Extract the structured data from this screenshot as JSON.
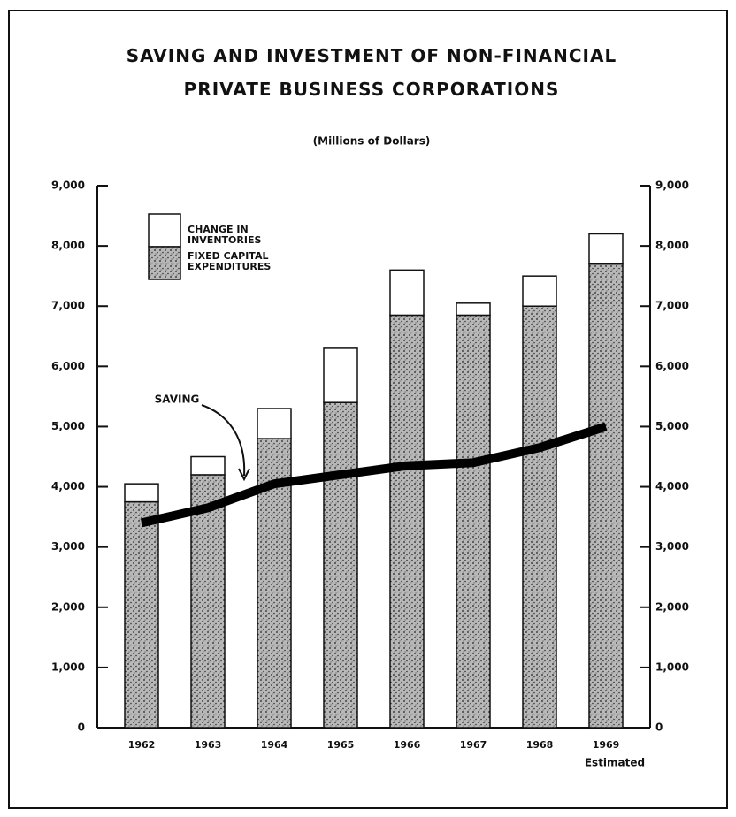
{
  "chart_data": {
    "type": "bar",
    "title": "SAVING AND INVESTMENT OF NON-FINANCIAL PRIVATE BUSINESS CORPORATIONS",
    "subtitle": "(Millions of Dollars)",
    "categories": [
      "1962",
      "1963",
      "1964",
      "1965",
      "1966",
      "1967",
      "1968",
      "1969"
    ],
    "category_note": "Estimated",
    "stacked": true,
    "series": [
      {
        "name": "FIXED CAPITAL EXPENDITURES",
        "color": "#9a9a9a",
        "values": [
          3750,
          4200,
          4800,
          5400,
          6850,
          6850,
          7000,
          7700
        ]
      },
      {
        "name": "CHANGE IN INVENTORIES",
        "color": "#ffffff",
        "values": [
          300,
          300,
          500,
          900,
          750,
          200,
          500,
          500
        ]
      },
      {
        "name": "SAVING",
        "type": "line",
        "color": "#000000",
        "values": [
          3400,
          3650,
          4050,
          4200,
          4350,
          4400,
          4650,
          5000
        ]
      }
    ],
    "ylim": [
      0,
      9000
    ],
    "yticks": [
      0,
      {
        "value": 1000,
        "label": "1,000"
      },
      {
        "value": 2000,
        "label": "2,000"
      },
      {
        "value": 3000,
        "label": "3,000"
      },
      {
        "value": 4000,
        "label": "4,000"
      },
      {
        "value": 5000,
        "label": "5,000"
      },
      {
        "value": 6000,
        "label": "6,000"
      },
      {
        "value": 7000,
        "label": "7,000"
      },
      {
        "value": 8000,
        "label": "8,000"
      },
      {
        "value": 9000,
        "label": "9,000"
      }
    ],
    "y2lim": [
      0,
      9000
    ],
    "y2ticks": [
      0,
      {
        "value": 1000,
        "label": "1,000"
      },
      {
        "value": 2000,
        "label": "2,000"
      },
      {
        "value": 3000,
        "label": "3,000"
      },
      {
        "value": 4000,
        "label": "4,000"
      },
      {
        "value": 5000,
        "label": "5,000"
      },
      {
        "value": 6000,
        "label": "6,000"
      },
      {
        "value": 7000,
        "label": "7,000"
      },
      {
        "value": 8000,
        "label": "8,000"
      },
      {
        "value": 9000,
        "label": "9,000"
      }
    ],
    "grid": false,
    "legend": "upper left"
  }
}
